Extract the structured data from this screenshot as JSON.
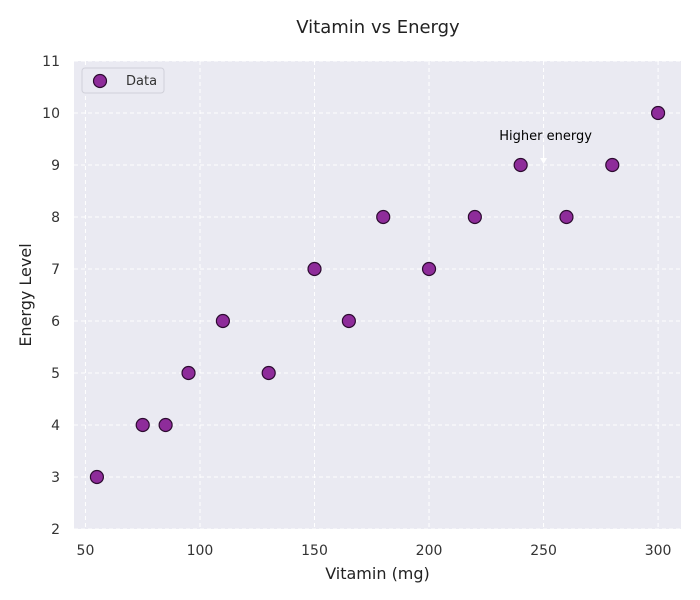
{
  "colors": {
    "plot_background": "#EAEAF2",
    "grid": "#FFFFFF",
    "point_fill": "#8E2C9A",
    "point_edge": "#2C0B30",
    "legend_bg": "#EAEAF2",
    "legend_border": "#D0D0DA",
    "text": "#222222",
    "annotation_arrow": "#FFFFFF"
  },
  "chart_data": {
    "type": "scatter",
    "title": "Vitamin vs Energy",
    "xlabel": "Vitamin (mg)",
    "ylabel": "Energy Level",
    "xlim": [
      45,
      310
    ],
    "ylim": [
      2,
      11
    ],
    "xticks": [
      50,
      100,
      150,
      200,
      250,
      300
    ],
    "yticks": [
      2,
      3,
      4,
      5,
      6,
      7,
      8,
      9,
      10,
      11
    ],
    "grid": true,
    "legend": {
      "placement": "top-left",
      "entries": [
        "Data"
      ]
    },
    "series": [
      {
        "name": "Data",
        "x": [
          55,
          75,
          85,
          95,
          110,
          130,
          150,
          165,
          180,
          200,
          220,
          240,
          260,
          280,
          300
        ],
        "y": [
          3,
          4,
          4,
          5,
          6,
          5,
          7,
          6,
          8,
          7,
          8,
          9,
          8,
          9,
          10
        ]
      }
    ],
    "annotations": [
      {
        "text": "Higher energy",
        "point_x": 250,
        "point_y": 9
      }
    ]
  }
}
